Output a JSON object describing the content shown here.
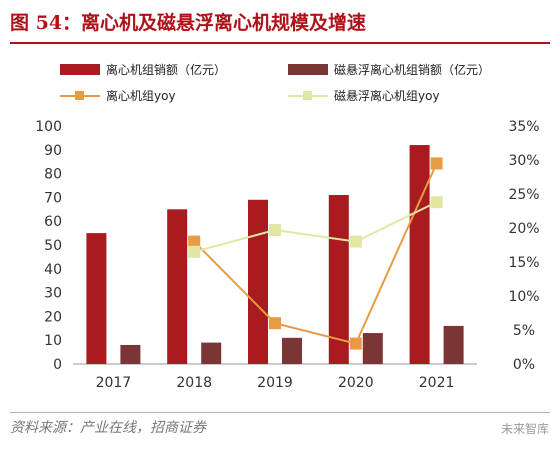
{
  "title": "图 54：离心机及磁悬浮离心机规模及增速",
  "source": "资料来源：产业在线，招商证券",
  "watermark": "未来智库",
  "chart_data": {
    "type": "bar",
    "categories": [
      "2017",
      "2018",
      "2019",
      "2020",
      "2021"
    ],
    "series": [
      {
        "name": "离心机组销额（亿元）",
        "kind": "bar",
        "axis": "left",
        "color": "#a91b1f",
        "values": [
          55,
          65,
          69,
          71,
          92
        ]
      },
      {
        "name": "磁悬浮离心机组销额（亿元）",
        "kind": "bar",
        "axis": "left",
        "color": "#7b3535",
        "values": [
          8,
          9,
          11,
          13,
          16
        ]
      },
      {
        "name": "离心机组yoy",
        "kind": "line",
        "axis": "right",
        "color": "#e89a45",
        "values": [
          null,
          0.18,
          0.06,
          0.03,
          0.295
        ]
      },
      {
        "name": "磁悬浮离心机组yoy",
        "kind": "line",
        "axis": "right",
        "color": "#e3e6a3",
        "values": [
          null,
          0.165,
          0.197,
          0.18,
          0.238
        ]
      }
    ],
    "ylim_left": [
      0,
      100
    ],
    "left_ticks": [
      "0",
      "10",
      "20",
      "30",
      "40",
      "50",
      "60",
      "70",
      "80",
      "90",
      "100"
    ],
    "ylim_right": [
      0,
      0.35
    ],
    "right_ticks": [
      "0%",
      "5%",
      "10%",
      "15%",
      "20%",
      "25%",
      "30%",
      "35%"
    ],
    "grid": false,
    "legend": "top"
  }
}
